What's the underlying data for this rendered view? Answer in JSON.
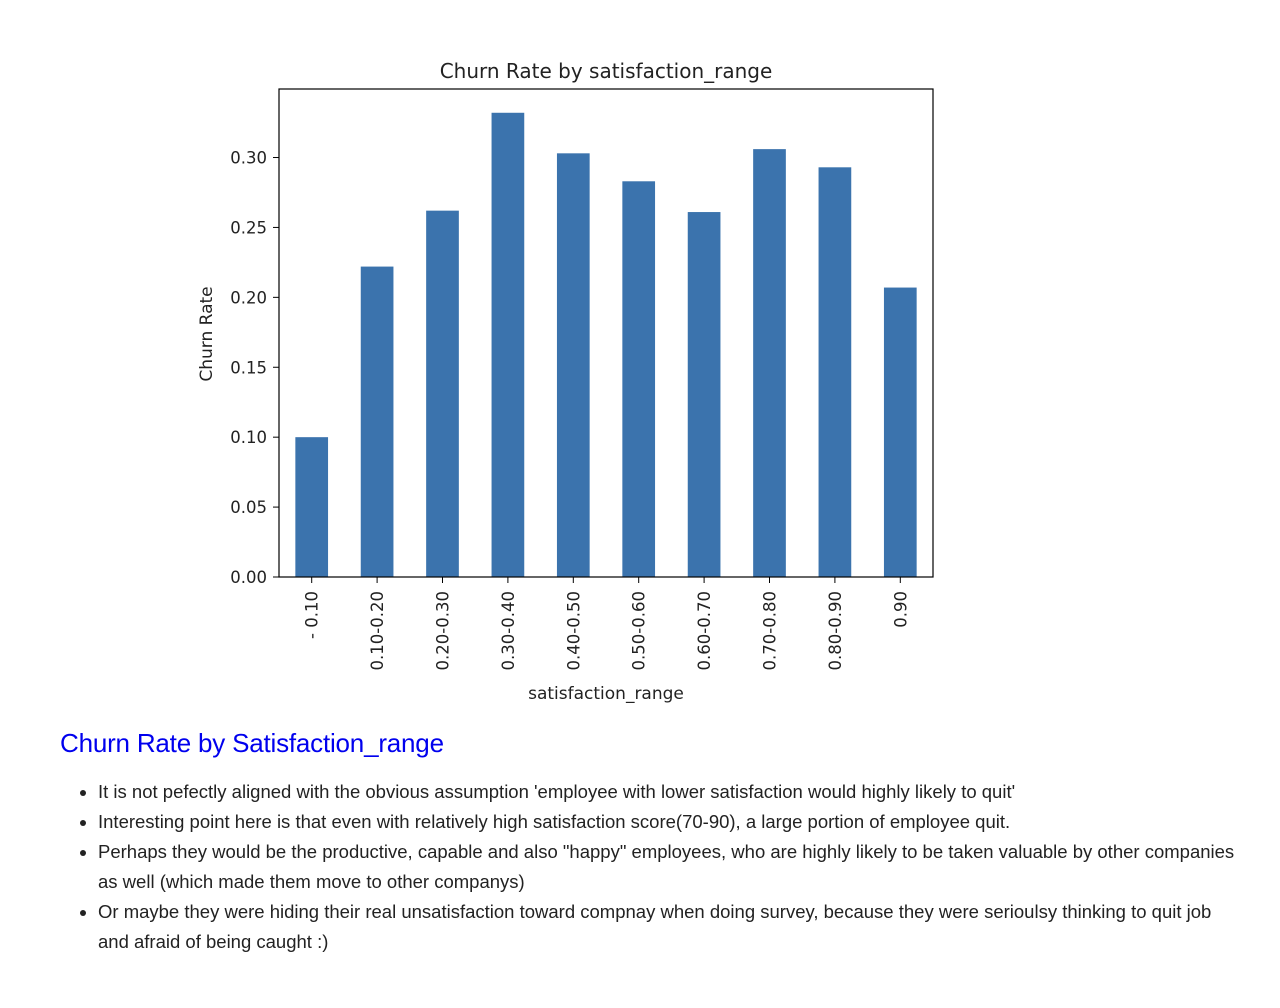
{
  "chart_data": {
    "type": "bar",
    "title": "Churn Rate by satisfaction_range",
    "xlabel": "satisfaction_range",
    "ylabel": "Churn Rate",
    "categories": [
      "- 0.10",
      "0.10-0.20",
      "0.20-0.30",
      "0.30-0.40",
      "0.40-0.50",
      "0.50-0.60",
      "0.60-0.70",
      "0.70-0.80",
      "0.80-0.90",
      "0.90"
    ],
    "values": [
      0.1,
      0.222,
      0.262,
      0.332,
      0.303,
      0.283,
      0.261,
      0.306,
      0.293,
      0.207
    ],
    "ylim": [
      0,
      0.349
    ],
    "yticks": [
      0.0,
      0.05,
      0.1,
      0.15,
      0.2,
      0.25,
      0.3
    ],
    "ytick_labels": [
      "0.00",
      "0.05",
      "0.10",
      "0.15",
      "0.20",
      "0.25",
      "0.30"
    ],
    "bar_color": "#3b73ad",
    "grid": false,
    "legend": "none"
  },
  "notes": {
    "heading": "Churn Rate by Satisfaction_range",
    "heading_color": "#0000ee",
    "bullets": [
      "It is not pefectly aligned with the obvious assumption 'employee with lower satisfaction would highly likely to quit'",
      "Interesting point here is that even with relatively high satisfaction score(70-90), a large portion of employee quit.",
      "Perhaps they would be the productive, capable and also \"happy\" employees, who are highly likely to be taken valuable by other companies as well (which made them move to other companys)",
      "Or maybe they were hiding their real unsatisfaction toward compnay when doing survey, because they were serioulsy thinking to quit job and afraid of being caught :)"
    ]
  }
}
